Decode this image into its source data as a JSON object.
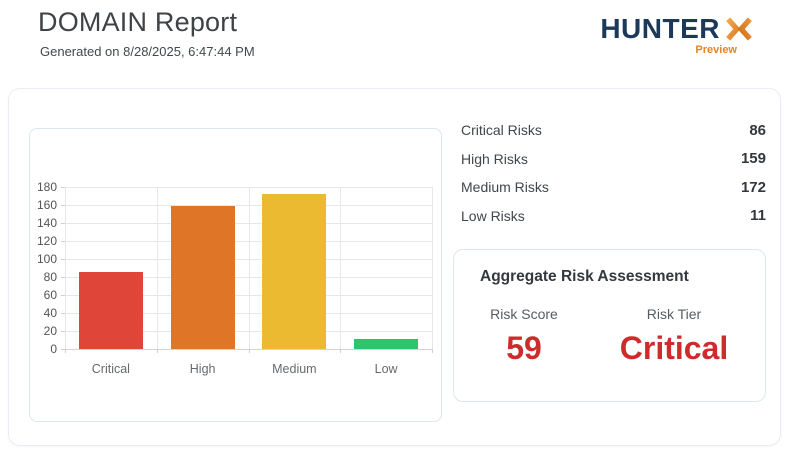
{
  "header": {
    "title": "DOMAIN Report",
    "subtitle": "Generated on 8/28/2025, 6:47:44 PM",
    "logo": {
      "text": "HUNTER",
      "x_icon": "orange-x-chevrons",
      "tagline": "Preview",
      "navy": "#1c395a",
      "orange_light": "#f0a64e",
      "orange_dark": "#d67a1e"
    }
  },
  "risk_summary": {
    "rows": [
      {
        "label": "Critical Risks",
        "value": "86"
      },
      {
        "label": "High Risks",
        "value": "159"
      },
      {
        "label": "Medium Risks",
        "value": "172"
      },
      {
        "label": "Low Risks",
        "value": "11"
      }
    ]
  },
  "aggregate": {
    "title": "Aggregate Risk Assessment",
    "score_label": "Risk Score",
    "score_value": "59",
    "tier_label": "Risk Tier",
    "tier_value": "Critical",
    "value_color": "#ce2c2c"
  },
  "chart_data": {
    "type": "bar",
    "categories": [
      "Critical",
      "High",
      "Medium",
      "Low"
    ],
    "values": [
      86,
      159,
      172,
      11
    ],
    "colors": [
      "#e0453a",
      "#df7527",
      "#ecba30",
      "#2dc56c"
    ],
    "title": "",
    "xlabel": "",
    "ylabel": "",
    "ylim": [
      0,
      180
    ],
    "ytick_step": 20,
    "grid": true,
    "legend": "none"
  }
}
